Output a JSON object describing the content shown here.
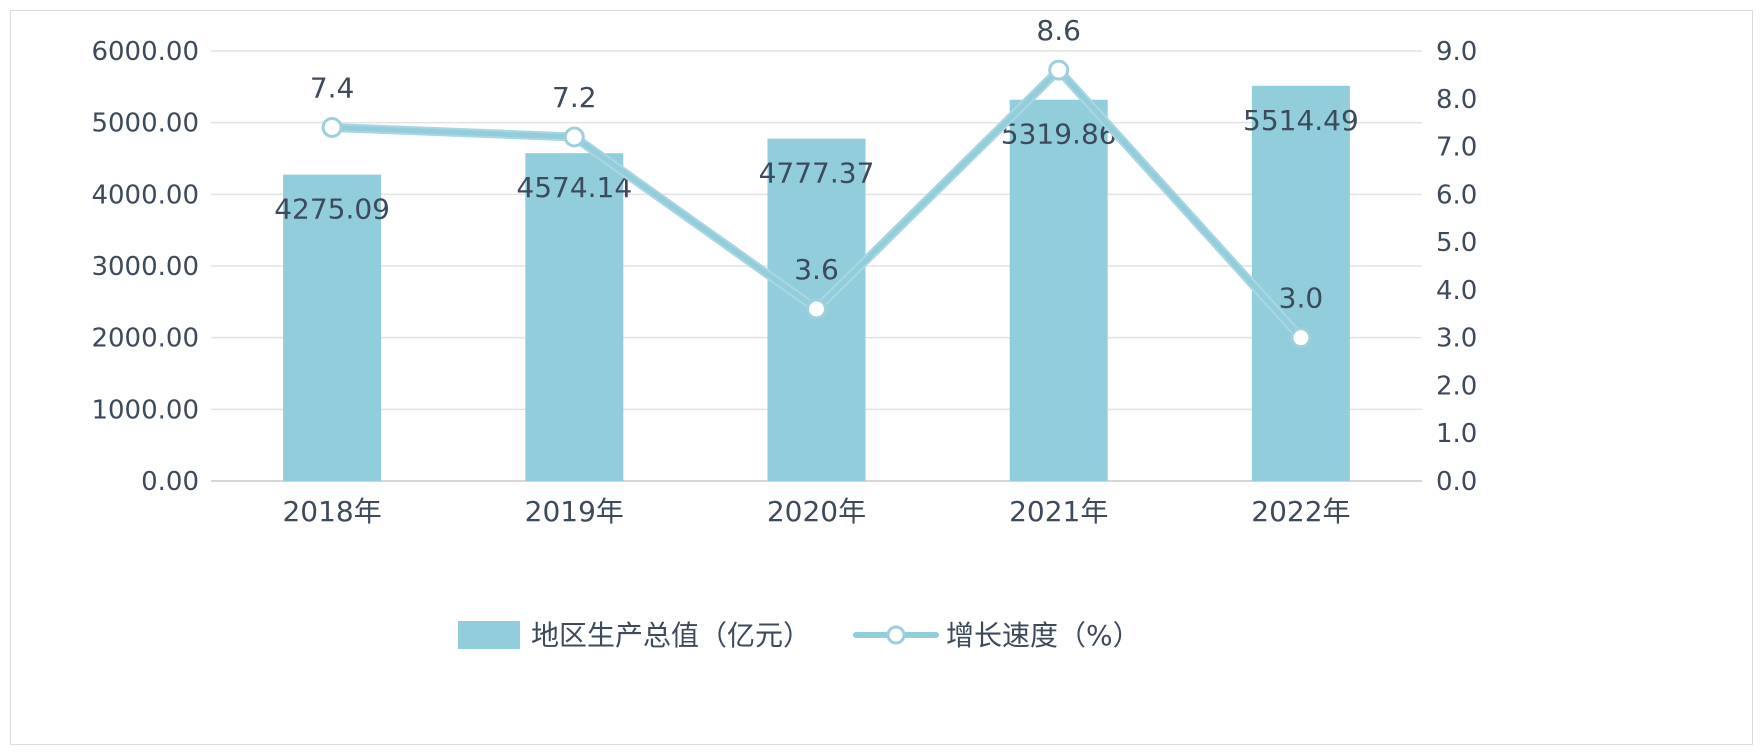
{
  "chart_data": {
    "type": "bar",
    "categories": [
      "2018年",
      "2019年",
      "2020年",
      "2021年",
      "2022年"
    ],
    "series": [
      {
        "name": "地区生产总值（亿元）",
        "type": "bar",
        "axis": "left",
        "color": "#92cddc",
        "values": [
          4275.09,
          4574.14,
          4777.37,
          5319.86,
          5514.49
        ],
        "labels": [
          "4275.09",
          "4574.14",
          "4777.37",
          "5319.86",
          "5514.49"
        ]
      },
      {
        "name": "增长速度（%）",
        "type": "line",
        "axis": "right",
        "color": "#92cddc",
        "marker": "circle",
        "values": [
          7.4,
          7.2,
          3.6,
          8.6,
          3.0
        ],
        "labels": [
          "7.4",
          "7.2",
          "3.6",
          "8.6",
          "3.0"
        ]
      }
    ],
    "y_left": {
      "ylim": [
        0,
        6000
      ],
      "ticks": [
        "0.00",
        "1000.00",
        "2000.00",
        "3000.00",
        "4000.00",
        "5000.00",
        "6000.00"
      ]
    },
    "y_right": {
      "ylim": [
        0,
        9
      ],
      "ticks": [
        "0.0",
        "1.0",
        "2.0",
        "3.0",
        "4.0",
        "5.0",
        "6.0",
        "7.0",
        "8.0",
        "9.0"
      ]
    },
    "grid": true,
    "legend": "bottom-center"
  }
}
